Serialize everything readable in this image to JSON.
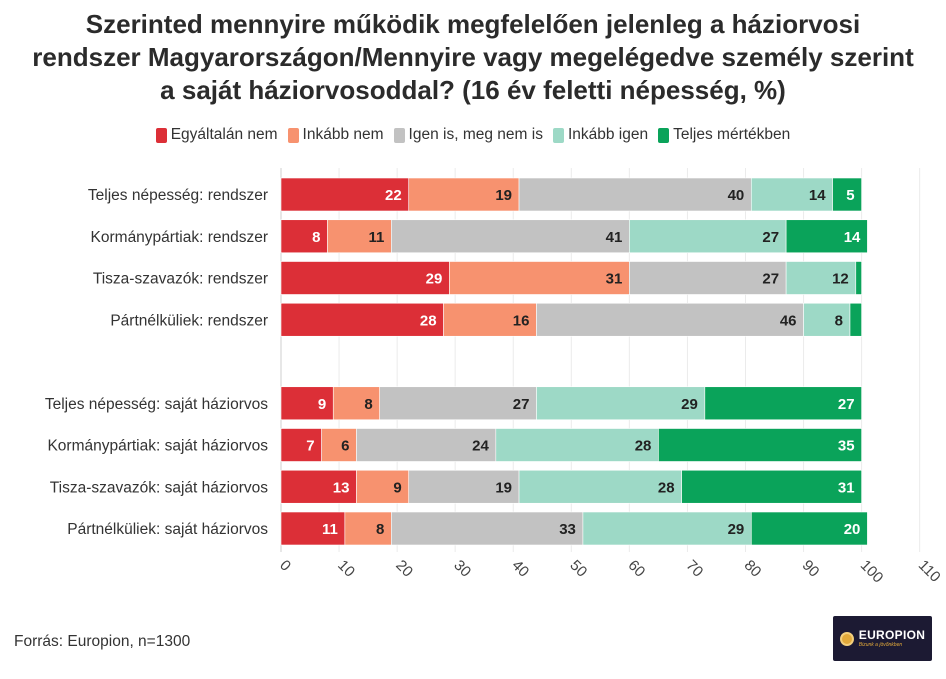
{
  "title_lines": [
    "Szerinted mennyire működik megfelelően jelenleg a háziorvosi",
    "rendszer Magyarországon/Mennyire vagy megelégedve személy szerint",
    "a saját háziorvosoddal? (16 év feletti népesség, %)"
  ],
  "source": "Forrás: Europion, n=1300",
  "logo": {
    "name": "EUROPION",
    "tagline": "Bizunk a jövőnkben"
  },
  "colors": {
    "Egyáltalán nem": "#dc2f37",
    "Inkább nem": "#f7926f",
    "Igen is, meg nem is": "#c2c2c2",
    "Inkább igen": "#9dd9c6",
    "Teljes mértékben": "#0aa35a"
  },
  "chart_data": {
    "type": "bar",
    "orientation": "horizontal",
    "stacked": true,
    "legend_position": "top",
    "xlim": [
      0,
      110
    ],
    "x_ticks": [
      "0",
      "10",
      "20",
      "30",
      "40",
      "50",
      "60",
      "70",
      "80",
      "90",
      "100",
      "110"
    ],
    "grid": true,
    "categories": [
      "Teljes népesség: rendszer",
      "Kormánypártiak: rendszer",
      "Tisza-szavazók: rendszer",
      "Pártnélküliek: rendszer",
      "",
      "Teljes népesség: saját háziorvos",
      "Kormánypártiak: saját háziorvos",
      "Tisza-szavazók: saját háziorvos",
      "Pártnélküliek: saját háziorvos"
    ],
    "series": [
      {
        "name": "Egyáltalán nem",
        "values": [
          22,
          8,
          29,
          28,
          null,
          9,
          7,
          13,
          11
        ]
      },
      {
        "name": "Inkább nem",
        "values": [
          19,
          11,
          31,
          16,
          null,
          8,
          6,
          9,
          8
        ]
      },
      {
        "name": "Igen is, meg nem is",
        "values": [
          40,
          41,
          27,
          46,
          null,
          27,
          24,
          19,
          33
        ]
      },
      {
        "name": "Inkább igen",
        "values": [
          14,
          27,
          12,
          8,
          null,
          29,
          28,
          28,
          29
        ]
      },
      {
        "name": "Teljes mértékben",
        "values": [
          5,
          14,
          1,
          2,
          null,
          27,
          35,
          31,
          20
        ]
      }
    ]
  }
}
